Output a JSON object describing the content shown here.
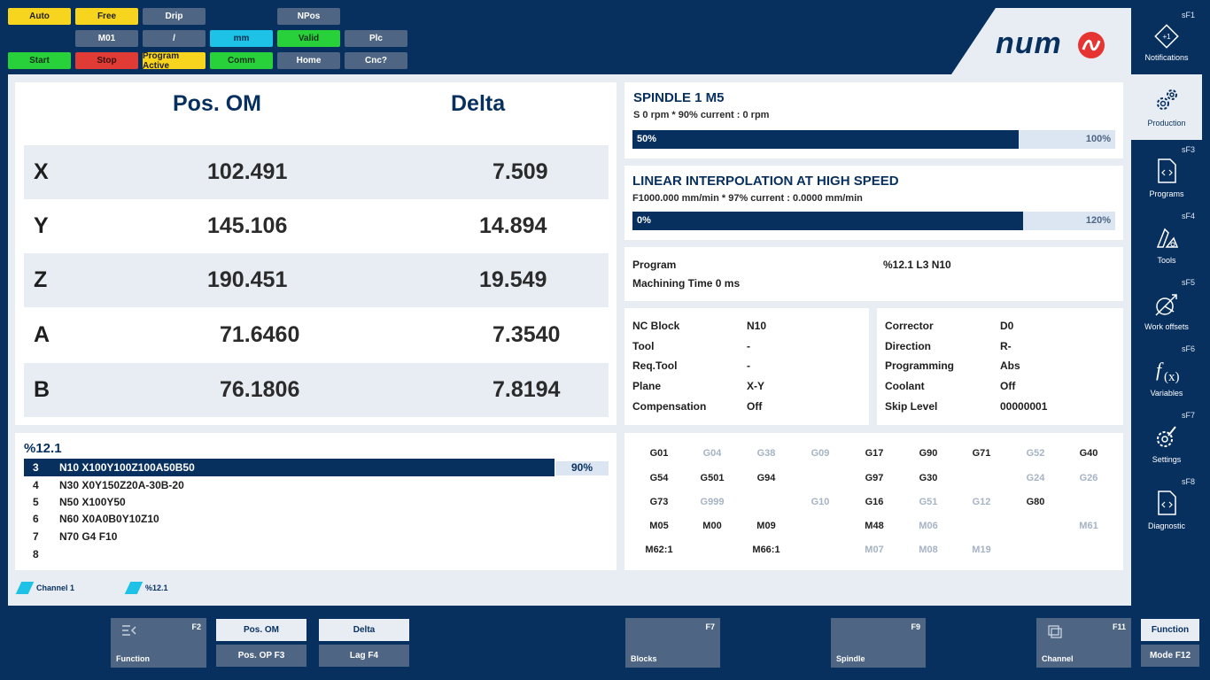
{
  "status": {
    "auto": "Auto",
    "free": "Free",
    "drip": "Drip",
    "npos": "NPos",
    "m01": "M01",
    "slash": "/",
    "mm": "mm",
    "valid": "Valid",
    "plc": "Plc",
    "start": "Start",
    "stop": "Stop",
    "program_active": "Program Active",
    "comm": "Comm",
    "home": "Home",
    "cnc": "Cnc?"
  },
  "brand": "num",
  "position": {
    "head_pos": "Pos. OM",
    "head_delta": "Delta",
    "rows": [
      {
        "axis": "X",
        "pos": "102.491",
        "delta": "7.509"
      },
      {
        "axis": "Y",
        "pos": "145.106",
        "delta": "14.894"
      },
      {
        "axis": "Z",
        "pos": "190.451",
        "delta": "19.549"
      },
      {
        "axis": "A",
        "pos": "71.6460",
        "delta": "7.3540"
      },
      {
        "axis": "B",
        "pos": "76.1806",
        "delta": "7.8194"
      }
    ]
  },
  "spindle": {
    "title": "SPINDLE 1 M5",
    "sub": "S 0 rpm * 90% current : 0 rpm",
    "bar_left": "50%",
    "bar_right": "100%"
  },
  "feed": {
    "title": "LINEAR INTERPOLATION AT HIGH SPEED",
    "sub": "F1000.000 mm/min * 97% current : 0.0000 mm/min",
    "bar_left": "0%",
    "bar_right": "120%"
  },
  "program_info": {
    "program_label": "Program",
    "program_value": "%12.1  L3  N10",
    "machining_time": "Machining Time 0 ms"
  },
  "block_info": [
    {
      "label": "NC Block",
      "value": "N10"
    },
    {
      "label": "Tool",
      "value": "-"
    },
    {
      "label": "Req.Tool",
      "value": "-"
    },
    {
      "label": "Plane",
      "value": "X-Y"
    },
    {
      "label": "Compensation",
      "value": "Off"
    }
  ],
  "corrector_info": [
    {
      "label": "Corrector",
      "value": "D0"
    },
    {
      "label": "Direction",
      "value": "R-"
    },
    {
      "label": "Programming",
      "value": "Abs"
    },
    {
      "label": "Coolant",
      "value": "Off"
    },
    {
      "label": "Skip Level",
      "value": "00000001"
    }
  ],
  "listing": {
    "name": "%12.1",
    "percent": "90%",
    "lines": [
      {
        "n": "3",
        "code": "N10 X100Y100Z100A50B50"
      },
      {
        "n": "4",
        "code": "N30 X0Y150Z20A-30B-20"
      },
      {
        "n": "5",
        "code": "N50 X100Y50"
      },
      {
        "n": "6",
        "code": "N60 X0A0B0Y10Z10"
      },
      {
        "n": "7",
        "code": "N70 G4 F10"
      },
      {
        "n": "8",
        "code": ""
      }
    ]
  },
  "gcodes": {
    "r1": [
      "G01",
      "G04",
      "G38",
      "G09",
      "G17",
      "G90",
      "G71",
      "G52",
      "G40"
    ],
    "r2": [
      "G54",
      "G501",
      "G94",
      "G97",
      "G30",
      "G24",
      "G26"
    ],
    "r3": [
      "G73",
      "G999",
      "G10",
      "G16",
      "G51",
      "G12",
      "G80"
    ],
    "r4": [
      "M05",
      "M00",
      "M09",
      "M48",
      "M06",
      "M61"
    ],
    "r5": [
      "M62:1",
      "M66:1",
      "M07",
      "M08",
      "M19"
    ]
  },
  "channels": {
    "c1": "Channel 1",
    "c2": "%12.1"
  },
  "sidebar": {
    "notifications": {
      "key": "sF1",
      "label": "Notifications"
    },
    "production": {
      "label": "Production"
    },
    "programs": {
      "key": "sF3",
      "label": "Programs"
    },
    "tools": {
      "key": "sF4",
      "label": "Tools"
    },
    "work_offsets": {
      "key": "sF5",
      "label": "Work offsets"
    },
    "variables": {
      "key": "sF6",
      "label": "Variables"
    },
    "settings": {
      "key": "sF7",
      "label": "Settings"
    },
    "diagnostic": {
      "key": "sF8",
      "label": "Diagnostic"
    }
  },
  "bottom": {
    "function": {
      "key": "F2",
      "label": "Function"
    },
    "pos_om": "Pos. OM",
    "pos_op": "Pos. OP F3",
    "delta": "Delta",
    "lag": "Lag F4",
    "blocks": {
      "key": "F7",
      "label": "Blocks"
    },
    "spindle": {
      "key": "F9",
      "label": "Spindle"
    },
    "channel": {
      "key": "F11",
      "label": "Channel"
    },
    "function_mode": "Function",
    "mode_f12": "Mode F12"
  }
}
